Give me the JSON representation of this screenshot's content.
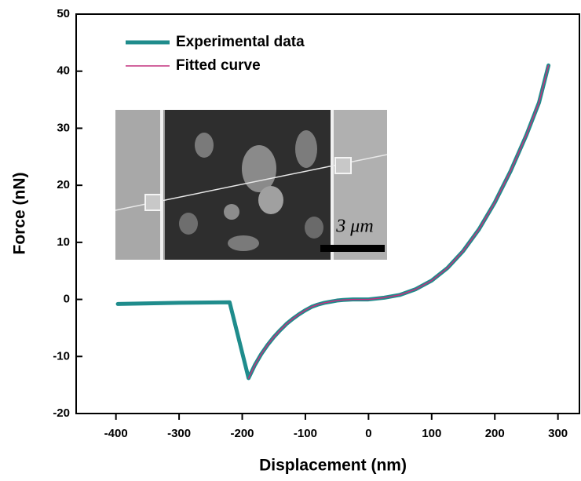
{
  "chart_data": {
    "type": "line",
    "xlabel": "Displacement (nm)",
    "ylabel": "Force (nN)",
    "xlim": [
      -463,
      334
    ],
    "ylim": [
      -20,
      50
    ],
    "xticks": [
      -400,
      -300,
      -200,
      -100,
      0,
      100,
      200,
      300
    ],
    "yticks": [
      -20,
      -10,
      0,
      10,
      20,
      30,
      40,
      50
    ],
    "inset_scale_label": "3 μm",
    "series": [
      {
        "name": "Experimental data",
        "color": "#1f8c8c",
        "width": 5,
        "x": [
          -397,
          -300,
          -220,
          -190,
          -180,
          -170,
          -160,
          -150,
          -140,
          -130,
          -120,
          -110,
          -100,
          -90,
          -80,
          -70,
          -60,
          -50,
          -40,
          -25,
          0,
          25,
          50,
          75,
          100,
          125,
          150,
          175,
          200,
          225,
          250,
          270,
          285
        ],
        "values": [
          -0.8,
          -0.6,
          -0.5,
          -13.8,
          -11.5,
          -9.6,
          -8,
          -6.6,
          -5.4,
          -4.3,
          -3.4,
          -2.6,
          -1.9,
          -1.3,
          -0.9,
          -0.6,
          -0.4,
          -0.2,
          -0.1,
          0,
          0,
          0.3,
          0.8,
          1.8,
          3.3,
          5.5,
          8.5,
          12.3,
          17,
          22.5,
          28.8,
          34.5,
          41
        ]
      },
      {
        "name": "Fitted curve",
        "color": "#c4307f",
        "width": 1.5,
        "x": [
          -190,
          -180,
          -170,
          -160,
          -150,
          -140,
          -130,
          -120,
          -110,
          -100,
          -90,
          -80,
          -70,
          -60,
          -50,
          -40,
          -25,
          0,
          25,
          50,
          75,
          100,
          125,
          150,
          175,
          200,
          225,
          250,
          270,
          285
        ],
        "values": [
          -13.8,
          -11.5,
          -9.6,
          -8,
          -6.6,
          -5.4,
          -4.3,
          -3.4,
          -2.6,
          -1.9,
          -1.3,
          -0.9,
          -0.6,
          -0.4,
          -0.2,
          -0.1,
          0,
          0,
          0.3,
          0.8,
          1.8,
          3.3,
          5.5,
          8.5,
          12.3,
          17,
          22.5,
          28.8,
          34.5,
          41
        ]
      }
    ]
  }
}
